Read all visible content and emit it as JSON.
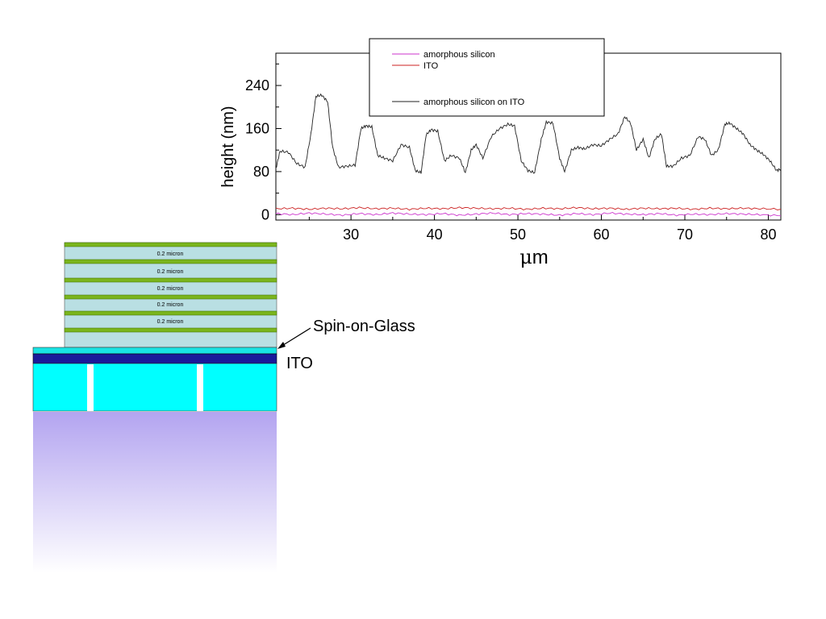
{
  "colors": {
    "background": "#ffffff",
    "amorphous_silicon": "#cc33cc",
    "ito": "#cc2222",
    "amorphous_silicon_on_ito": "#222222",
    "dielectric_layer": "#b9dfe3",
    "green_layer": "#7ab51d",
    "sog_layer": "#19e3e3",
    "ito_layer": "#1a1a9a",
    "substrate": "#00ffff",
    "glow_top": "#b3a4f0",
    "glow_bottom": "#ffffff"
  },
  "chart_data": {
    "type": "line",
    "title": "",
    "xlabel_prefix": "μ",
    "xlabel_suffix": "m",
    "ylabel": "height (nm)",
    "xlim": [
      21,
      81.5
    ],
    "ylim": [
      -10,
      300
    ],
    "xticks": [
      30,
      40,
      50,
      60,
      70,
      80
    ],
    "yticks": [
      0,
      80,
      160,
      240
    ],
    "legend_position": "top-center",
    "series": [
      {
        "name": "amorphous silicon",
        "color": "#cc33cc",
        "x": [
          21,
          23,
          25,
          27,
          29,
          31,
          33,
          35,
          37,
          39,
          41,
          43,
          45,
          47,
          49,
          51,
          53,
          55,
          57,
          59,
          61,
          63,
          65,
          67,
          69,
          71,
          73,
          75,
          77,
          79,
          81.5
        ],
        "y": [
          2,
          0,
          3,
          1,
          -1,
          2,
          0,
          3,
          1,
          0,
          2,
          -1,
          1,
          3,
          0,
          2,
          1,
          -1,
          2,
          0,
          3,
          1,
          0,
          2,
          -1,
          1,
          0,
          2,
          1,
          0,
          -2
        ]
      },
      {
        "name": "ITO",
        "color": "#cc2222",
        "x": [
          21,
          23,
          25,
          27,
          29,
          31,
          33,
          35,
          37,
          39,
          41,
          43,
          45,
          47,
          49,
          51,
          53,
          55,
          57,
          59,
          61,
          63,
          65,
          67,
          69,
          71,
          73,
          75,
          77,
          79,
          81.5
        ],
        "y": [
          11,
          12,
          10,
          12,
          11,
          13,
          11,
          12,
          10,
          12,
          11,
          13,
          12,
          11,
          12,
          10,
          12,
          11,
          13,
          11,
          12,
          10,
          12,
          11,
          12,
          10,
          12,
          11,
          12,
          11,
          10
        ]
      },
      {
        "name": "amorphous silicon on ITO",
        "color": "#222222",
        "x": [
          21,
          21.5,
          22.5,
          23.5,
          24.5,
          25.2,
          25.8,
          26.5,
          27.2,
          27.8,
          28.5,
          29.5,
          30.5,
          31.2,
          31.8,
          32.5,
          33.2,
          34,
          35,
          36,
          37,
          37.7,
          38.4,
          39,
          39.6,
          40.4,
          41.2,
          42,
          43,
          43.7,
          44.4,
          45,
          45.8,
          46.8,
          47.8,
          48.8,
          49.6,
          50.4,
          51.2,
          52,
          52.8,
          53.4,
          54.2,
          55,
          55.6,
          56.4,
          57.2,
          58,
          59,
          60,
          61,
          62,
          62.8,
          63.5,
          64.2,
          65,
          65.7,
          66.4,
          67.2,
          67.8,
          68.6,
          69.6,
          70.6,
          71.6,
          72.4,
          73.2,
          74,
          74.8,
          75.4,
          76.2,
          77,
          77.8,
          78.6,
          79.4,
          80.2,
          81,
          81.5
        ],
        "y": [
          85,
          118,
          116,
          95,
          88,
          150,
          220,
          222,
          210,
          125,
          88,
          90,
          92,
          160,
          165,
          163,
          110,
          105,
          100,
          130,
          125,
          82,
          78,
          148,
          158,
          155,
          100,
          110,
          105,
          78,
          120,
          130,
          105,
          145,
          160,
          168,
          165,
          100,
          82,
          78,
          140,
          172,
          170,
          105,
          80,
          120,
          125,
          122,
          130,
          128,
          140,
          150,
          182,
          170,
          120,
          140,
          105,
          140,
          150,
          90,
          90,
          105,
          110,
          145,
          140,
          110,
          120,
          168,
          170,
          160,
          150,
          130,
          120,
          112,
          100,
          82,
          85
        ]
      }
    ]
  },
  "diagram": {
    "layer_labels": [
      "0.2 micron",
      "0.2 micron",
      "0.2 micron",
      "0.2 micron",
      "0.2 micron"
    ],
    "annotation_sog": "Spin-on-Glass",
    "annotation_ito": "ITO"
  }
}
